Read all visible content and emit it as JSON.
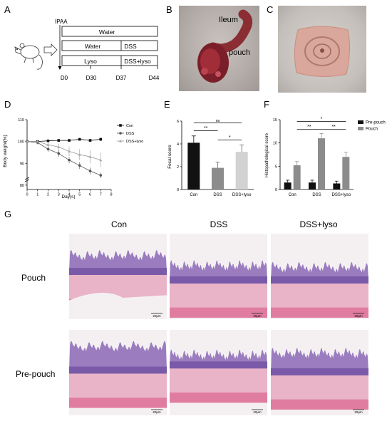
{
  "panels": {
    "A": "A",
    "B": "B",
    "C": "C",
    "D": "D",
    "E": "E",
    "F": "F",
    "G": "G"
  },
  "panel_a": {
    "ipaa_label": "IPAA",
    "box1": "Water",
    "box2_left": "Water",
    "box2_right": "DSS",
    "box3_left": "Lyso",
    "box3_right": "DSS+lyso",
    "timepoints": [
      "D0",
      "D30",
      "D37",
      "D44"
    ]
  },
  "panel_b": {
    "label_ileum": "Ileum",
    "label_pouch": "pouch"
  },
  "colors": {
    "gray_bar": "#8c8c8c",
    "black_bar": "#111111",
    "he_pink": "#e9b3c8",
    "he_purple": "#8c6fb4"
  },
  "chart_data": [
    {
      "id": "D",
      "type": "line",
      "ylabel": "Body weight(%)",
      "xlabel": "Day(s)",
      "xlim": [
        0,
        8
      ],
      "ylim": [
        78,
        110
      ],
      "x_ticks": [
        "0",
        "1",
        "2",
        "3",
        "4",
        "5",
        "6",
        "7",
        "8"
      ],
      "y_ticks": [
        "80",
        "90",
        "100",
        "110"
      ],
      "x": [
        0,
        1,
        2,
        3,
        4,
        5,
        6,
        7
      ],
      "legend": [
        "Con",
        "DSS",
        "DSS+lyso"
      ],
      "series": [
        {
          "name": "Con",
          "values": [
            100,
            100,
            100.3,
            100.5,
            100.5,
            101,
            100.5,
            101
          ]
        },
        {
          "name": "DSS",
          "values": [
            100,
            99.5,
            96.5,
            94.5,
            91.5,
            89,
            86.5,
            84.5
          ]
        },
        {
          "name": "DSS+lyso",
          "values": [
            100,
            100,
            98.5,
            97.5,
            95.5,
            94,
            93,
            91.5
          ]
        }
      ]
    },
    {
      "id": "E",
      "type": "bar",
      "ylabel": "Fecal score",
      "categories": [
        "Con",
        "DSS",
        "DSS+lyso"
      ],
      "values": [
        4.1,
        1.9,
        3.3
      ],
      "errors": [
        0.6,
        0.5,
        0.6
      ],
      "ylim": [
        0,
        6
      ],
      "y_ticks": [
        "0",
        "2",
        "4",
        "6"
      ],
      "annotations": [
        "**",
        "*",
        "ns"
      ]
    },
    {
      "id": "F",
      "type": "bar",
      "ylabel": "Histopathological score",
      "categories": [
        "Con",
        "DSS",
        "DSS+lyso"
      ],
      "ylim": [
        0,
        15
      ],
      "y_ticks": [
        "0",
        "5",
        "10",
        "15"
      ],
      "legend": [
        "Pre-pouch",
        "Pouch"
      ],
      "series": [
        {
          "name": "Pre-pouch",
          "values": [
            1.5,
            1.5,
            1.3
          ],
          "errors": [
            0.5,
            0.5,
            0.5
          ]
        },
        {
          "name": "Pouch",
          "values": [
            5.2,
            11.0,
            7.0
          ],
          "errors": [
            0.8,
            1.0,
            1.0
          ]
        }
      ],
      "annotations": [
        "**",
        "**",
        "*"
      ]
    }
  ],
  "panel_g": {
    "columns": [
      "Con",
      "DSS",
      "DSS+lyso"
    ],
    "rows": [
      "Pouch",
      "Pre-pouch"
    ],
    "scale_bar": "20μm"
  }
}
